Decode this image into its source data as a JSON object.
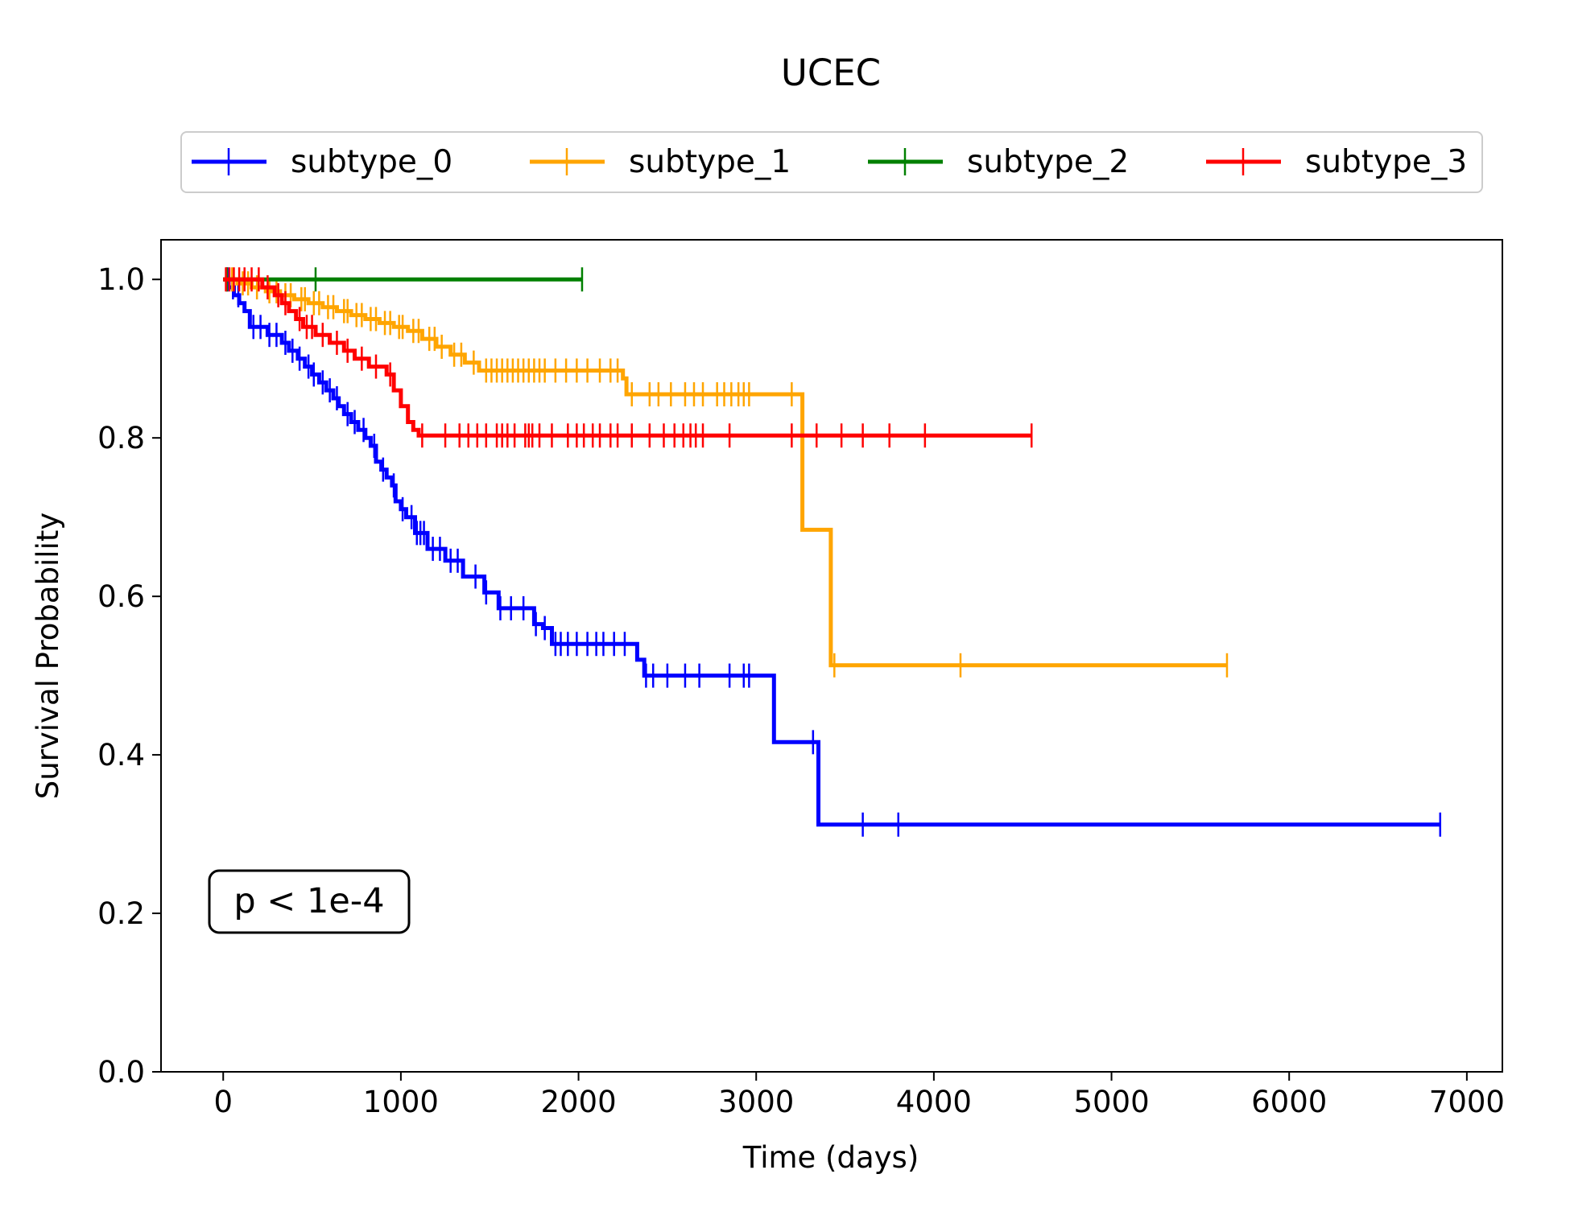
{
  "chart_data": {
    "type": "line",
    "step": "post",
    "title": "UCEC",
    "xlabel": "Time (days)",
    "ylabel": "Survival Probability",
    "xlim": [
      -350,
      7200
    ],
    "ylim": [
      0,
      1.05
    ],
    "xticks": [
      0,
      1000,
      2000,
      3000,
      4000,
      5000,
      6000,
      7000
    ],
    "yticks": [
      0.0,
      0.2,
      0.4,
      0.6,
      0.8,
      1.0
    ],
    "xtick_labels": [
      "0",
      "1000",
      "2000",
      "3000",
      "4000",
      "5000",
      "6000",
      "7000"
    ],
    "ytick_labels": [
      "0.0",
      "0.2",
      "0.4",
      "0.6",
      "0.8",
      "1.0"
    ],
    "grid": false,
    "legend_position": "top-center",
    "annotation": "p < 1e-4",
    "series": [
      {
        "name": "subtype_0",
        "color": "#0000ff",
        "x": [
          0,
          30,
          60,
          90,
          120,
          150,
          250,
          330,
          370,
          420,
          460,
          500,
          540,
          580,
          620,
          650,
          680,
          720,
          760,
          800,
          830,
          860,
          890,
          920,
          950,
          970,
          1000,
          1030,
          1080,
          1150,
          1250,
          1350,
          1470,
          1550,
          1750,
          1800,
          1850,
          2330,
          2370,
          3100,
          3330,
          3350,
          6850
        ],
        "y": [
          1.0,
          0.99,
          0.98,
          0.97,
          0.96,
          0.94,
          0.93,
          0.92,
          0.91,
          0.9,
          0.89,
          0.88,
          0.87,
          0.86,
          0.85,
          0.84,
          0.83,
          0.82,
          0.81,
          0.8,
          0.79,
          0.77,
          0.76,
          0.75,
          0.74,
          0.72,
          0.71,
          0.7,
          0.68,
          0.66,
          0.645,
          0.625,
          0.605,
          0.585,
          0.565,
          0.56,
          0.54,
          0.52,
          0.5,
          0.416,
          0.416,
          0.312,
          0.312
        ],
        "censor_x": [
          25,
          55,
          85,
          170,
          210,
          260,
          300,
          350,
          390,
          430,
          480,
          510,
          560,
          600,
          640,
          700,
          740,
          790,
          850,
          900,
          960,
          1010,
          1060,
          1090,
          1110,
          1130,
          1180,
          1220,
          1280,
          1320,
          1420,
          1480,
          1560,
          1620,
          1690,
          1760,
          1810,
          1870,
          1900,
          1940,
          1990,
          2050,
          2100,
          2140,
          2200,
          2260,
          2380,
          2420,
          2500,
          2600,
          2680,
          2850,
          2930,
          2960,
          3320,
          3600,
          3800,
          6850
        ]
      },
      {
        "name": "subtype_1",
        "color": "#ffa500",
        "x": [
          0,
          80,
          160,
          240,
          320,
          400,
          480,
          560,
          640,
          720,
          800,
          880,
          960,
          1040,
          1120,
          1200,
          1280,
          1360,
          1440,
          2250,
          2270,
          3240,
          3260,
          3420,
          5650
        ],
        "y": [
          1.0,
          0.995,
          0.99,
          0.985,
          0.98,
          0.975,
          0.97,
          0.965,
          0.96,
          0.955,
          0.95,
          0.945,
          0.94,
          0.935,
          0.925,
          0.915,
          0.905,
          0.895,
          0.885,
          0.875,
          0.855,
          0.855,
          0.684,
          0.513,
          0.513
        ],
        "censor_x": [
          20,
          50,
          110,
          140,
          190,
          260,
          300,
          350,
          380,
          440,
          460,
          510,
          540,
          590,
          620,
          680,
          700,
          750,
          780,
          830,
          860,
          910,
          940,
          990,
          1010,
          1070,
          1100,
          1160,
          1190,
          1230,
          1300,
          1340,
          1410,
          1480,
          1510,
          1540,
          1570,
          1600,
          1630,
          1660,
          1690,
          1720,
          1750,
          1780,
          1810,
          1870,
          1930,
          1990,
          2050,
          2120,
          2180,
          2220,
          2300,
          2400,
          2450,
          2520,
          2600,
          2650,
          2700,
          2780,
          2820,
          2860,
          2900,
          2930,
          2960,
          3200,
          3440,
          4150,
          5650
        ]
      },
      {
        "name": "subtype_2",
        "color": "#008000",
        "x": [
          0,
          2020
        ],
        "y": [
          1.0,
          1.0
        ],
        "censor_x": [
          20,
          520,
          2020
        ]
      },
      {
        "name": "subtype_3",
        "color": "#ff0000",
        "x": [
          0,
          220,
          290,
          330,
          370,
          410,
          450,
          520,
          600,
          680,
          740,
          820,
          920,
          960,
          1000,
          1040,
          1070,
          1100,
          4550
        ],
        "y": [
          1.0,
          0.99,
          0.98,
          0.97,
          0.96,
          0.95,
          0.94,
          0.93,
          0.92,
          0.91,
          0.9,
          0.89,
          0.88,
          0.86,
          0.84,
          0.82,
          0.81,
          0.803,
          0.803
        ],
        "censor_x": [
          15,
          35,
          60,
          90,
          120,
          160,
          200,
          250,
          310,
          350,
          430,
          470,
          500,
          560,
          640,
          700,
          780,
          860,
          940,
          1120,
          1250,
          1330,
          1380,
          1430,
          1480,
          1540,
          1570,
          1600,
          1640,
          1700,
          1720,
          1740,
          1780,
          1850,
          1940,
          1990,
          2030,
          2080,
          2120,
          2180,
          2220,
          2300,
          2400,
          2480,
          2540,
          2590,
          2630,
          2660,
          2700,
          2850,
          3200,
          3340,
          3480,
          3600,
          3750,
          3950,
          4550
        ]
      }
    ]
  }
}
